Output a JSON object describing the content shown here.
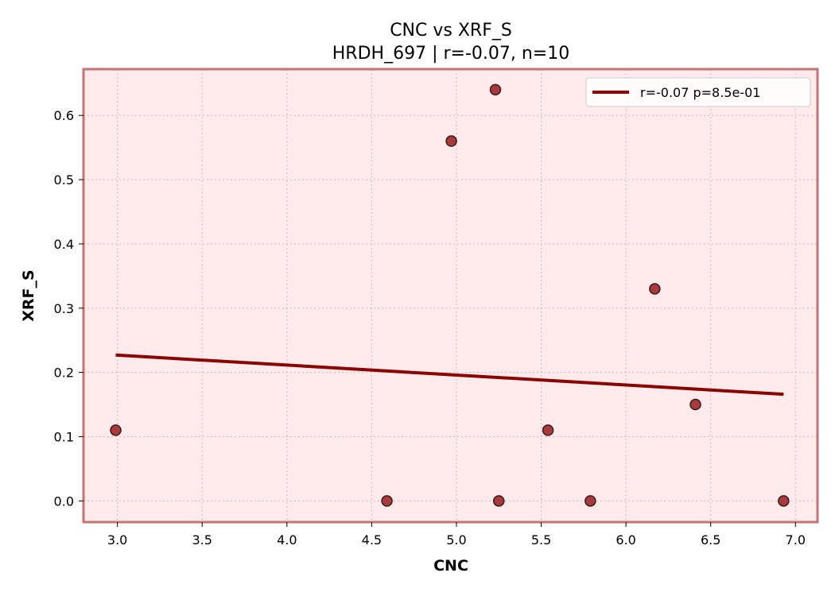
{
  "chart_data": {
    "type": "scatter",
    "title": "CNC vs XRF_S",
    "subtitle": "HRDH_697 | r=-0.07, n=10",
    "xlabel": "CNC",
    "ylabel": "XRF_S",
    "xlim": [
      2.8,
      7.13
    ],
    "ylim": [
      -0.033,
      0.672
    ],
    "xticks": [
      3.0,
      3.5,
      4.0,
      4.5,
      5.0,
      5.5,
      6.0,
      6.5,
      7.0
    ],
    "xtick_labels": [
      "3.0",
      "3.5",
      "4.0",
      "4.5",
      "5.0",
      "5.5",
      "6.0",
      "6.5",
      "7.0"
    ],
    "yticks": [
      0.0,
      0.1,
      0.2,
      0.3,
      0.4,
      0.5,
      0.6
    ],
    "ytick_labels": [
      "0.0",
      "0.1",
      "0.2",
      "0.3",
      "0.4",
      "0.5",
      "0.6"
    ],
    "grid": true,
    "legend_position": "top-right",
    "points": [
      {
        "x": 2.99,
        "y": 0.11
      },
      {
        "x": 4.59,
        "y": 0.0
      },
      {
        "x": 4.97,
        "y": 0.56
      },
      {
        "x": 5.23,
        "y": 0.64
      },
      {
        "x": 5.25,
        "y": 0.0
      },
      {
        "x": 5.54,
        "y": 0.11
      },
      {
        "x": 5.79,
        "y": 0.0
      },
      {
        "x": 6.17,
        "y": 0.33
      },
      {
        "x": 6.41,
        "y": 0.15
      },
      {
        "x": 6.93,
        "y": 0.0
      }
    ],
    "fit_line": {
      "label": "r=-0.07  p=8.5e-01",
      "x": [
        2.99,
        6.93
      ],
      "y": [
        0.227,
        0.166
      ]
    },
    "colors": {
      "plot_background": "#ffeaec",
      "frame": "#c47474",
      "point_fill": "#a83a3e",
      "point_edge": "#3a1a1c",
      "fit_line": "#8b0000"
    }
  }
}
